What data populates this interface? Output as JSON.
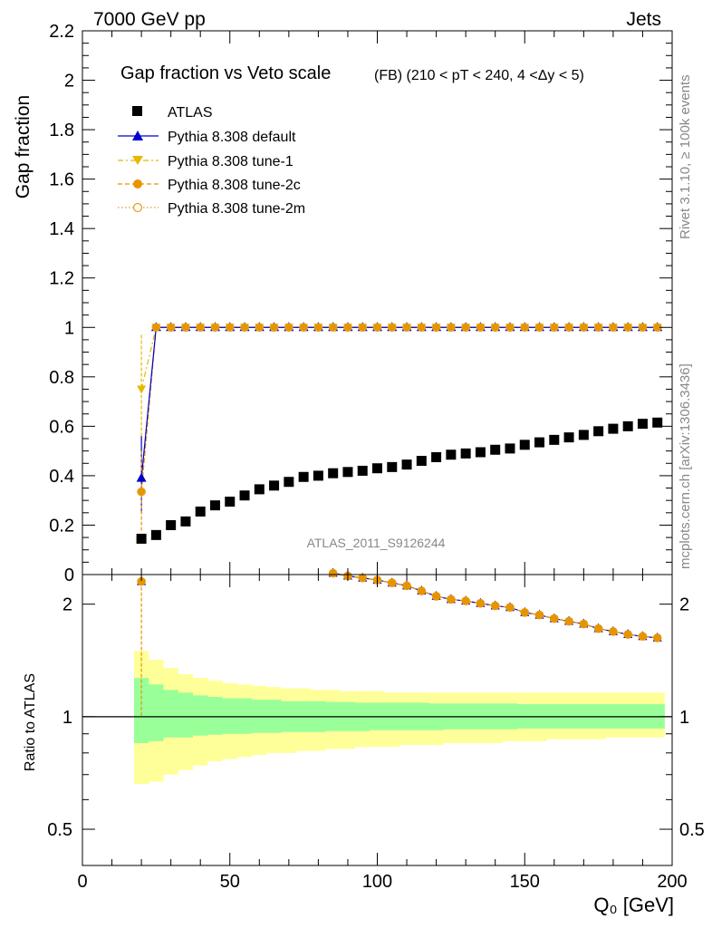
{
  "header": {
    "left": "7000 GeV pp",
    "right": "Jets"
  },
  "side_labels": {
    "rivet": "Rivet 3.1.10, ≥ 100k events",
    "mcplots": "mcplots.cern.ch [arXiv:1306.3436]"
  },
  "colors": {
    "atlas": "#000000",
    "default": "#0000cc",
    "tune1": "#e6b800",
    "tune2c": "#e69500",
    "tune2m": "#e0a020",
    "band_inner": "#99ff99",
    "band_outer": "#ffff99"
  },
  "chart_data": [
    {
      "type": "scatter",
      "panel": "main",
      "title": "Gap fraction vs Veto scale",
      "subtitle": "(FB) (210 < pT < 240, 4 <Δy < 5)",
      "xlabel": "",
      "ylabel": "Gap fraction",
      "xlim": [
        0,
        200
      ],
      "ylim": [
        0,
        2.2
      ],
      "yticks": [
        "0",
        "0.2",
        "0.4",
        "0.6",
        "0.8",
        "1",
        "1.2",
        "1.4",
        "1.6",
        "1.8",
        "2",
        "2.2"
      ],
      "watermark": "ATLAS_2011_S9126244",
      "x": [
        20,
        25,
        30,
        35,
        40,
        45,
        50,
        55,
        60,
        65,
        70,
        75,
        80,
        85,
        90,
        95,
        100,
        105,
        110,
        115,
        120,
        125,
        130,
        135,
        140,
        145,
        150,
        155,
        160,
        165,
        170,
        175,
        180,
        185,
        190,
        195
      ],
      "series": [
        {
          "name": "ATLAS",
          "key": "atlas",
          "marker": "square",
          "values": [
            0.145,
            0.16,
            0.2,
            0.215,
            0.255,
            0.28,
            0.295,
            0.32,
            0.345,
            0.36,
            0.375,
            0.395,
            0.4,
            0.41,
            0.415,
            0.42,
            0.43,
            0.435,
            0.445,
            0.46,
            0.475,
            0.485,
            0.49,
            0.495,
            0.505,
            0.51,
            0.525,
            0.535,
            0.545,
            0.555,
            0.565,
            0.58,
            0.59,
            0.6,
            0.61,
            0.615
          ]
        },
        {
          "name": "Pythia 8.308 default",
          "key": "default",
          "marker": "triangle-up",
          "line": "solid",
          "values": [
            0.39,
            1,
            1,
            1,
            1,
            1,
            1,
            1,
            1,
            1,
            1,
            1,
            1,
            1,
            1,
            1,
            1,
            1,
            1,
            1,
            1,
            1,
            1,
            1,
            1,
            1,
            1,
            1,
            1,
            1,
            1,
            1,
            1,
            1,
            1,
            1
          ]
        },
        {
          "name": "Pythia 8.308 tune-1",
          "key": "tune1",
          "marker": "triangle-down",
          "line": "dashdot",
          "values": [
            0.75,
            1,
            1,
            1,
            1,
            1,
            1,
            1,
            1,
            1,
            1,
            1,
            1,
            1,
            1,
            1,
            1,
            1,
            1,
            1,
            1,
            1,
            1,
            1,
            1,
            1,
            1,
            1,
            1,
            1,
            1,
            1,
            1,
            1,
            1,
            1
          ]
        },
        {
          "name": "Pythia 8.308 tune-2c",
          "key": "tune2c",
          "marker": "circle",
          "line": "dashed",
          "values": [
            0.335,
            1,
            1,
            1,
            1,
            1,
            1,
            1,
            1,
            1,
            1,
            1,
            1,
            1,
            1,
            1,
            1,
            1,
            1,
            1,
            1,
            1,
            1,
            1,
            1,
            1,
            1,
            1,
            1,
            1,
            1,
            1,
            1,
            1,
            1,
            1
          ]
        },
        {
          "name": "Pythia 8.308 tune-2m",
          "key": "tune2m",
          "marker": "circle-open",
          "line": "dotted",
          "values": [
            0.335,
            1,
            1,
            1,
            1,
            1,
            1,
            1,
            1,
            1,
            1,
            1,
            1,
            1,
            1,
            1,
            1,
            1,
            1,
            1,
            1,
            1,
            1,
            1,
            1,
            1,
            1,
            1,
            1,
            1,
            1,
            1,
            1,
            1,
            1,
            1
          ]
        }
      ]
    },
    {
      "type": "scatter",
      "panel": "ratio",
      "ylabel": "Ratio to ATLAS",
      "xlabel": "Q₀ [GeV]",
      "xlim": [
        0,
        200
      ],
      "ylim": [
        0.4,
        2.4
      ],
      "yscale": "log",
      "xticks": [
        "0",
        "50",
        "100",
        "150",
        "200"
      ],
      "yticks": [
        "0.5",
        "1",
        "2"
      ],
      "x": [
        20,
        85,
        90,
        95,
        100,
        105,
        110,
        115,
        120,
        125,
        130,
        135,
        140,
        145,
        150,
        155,
        160,
        165,
        170,
        175,
        180,
        185,
        190,
        195
      ],
      "values": [
        2.3,
        2.42,
        2.38,
        2.35,
        2.32,
        2.28,
        2.24,
        2.17,
        2.1,
        2.06,
        2.04,
        2.01,
        1.98,
        1.96,
        1.9,
        1.87,
        1.83,
        1.8,
        1.77,
        1.72,
        1.69,
        1.66,
        1.64,
        1.625
      ],
      "band_inner_lo": [
        0.85,
        0.86,
        0.88,
        0.88,
        0.89,
        0.895,
        0.9,
        0.9,
        0.905,
        0.905,
        0.91,
        0.91,
        0.91,
        0.915,
        0.915,
        0.915,
        0.92,
        0.92,
        0.92,
        0.92,
        0.92,
        0.925,
        0.925,
        0.925,
        0.925,
        0.925,
        0.93,
        0.93,
        0.93,
        0.93,
        0.93,
        0.93,
        0.93,
        0.93,
        0.93,
        0.93
      ],
      "band_inner_hi": [
        1.27,
        1.22,
        1.18,
        1.16,
        1.14,
        1.13,
        1.12,
        1.12,
        1.11,
        1.11,
        1.1,
        1.1,
        1.1,
        1.095,
        1.095,
        1.09,
        1.09,
        1.09,
        1.09,
        1.09,
        1.085,
        1.085,
        1.085,
        1.085,
        1.085,
        1.085,
        1.08,
        1.08,
        1.08,
        1.08,
        1.08,
        1.08,
        1.08,
        1.08,
        1.08,
        1.08
      ],
      "band_outer_lo": [
        0.66,
        0.67,
        0.7,
        0.72,
        0.74,
        0.76,
        0.77,
        0.78,
        0.79,
        0.8,
        0.8,
        0.81,
        0.81,
        0.82,
        0.82,
        0.83,
        0.83,
        0.83,
        0.84,
        0.84,
        0.84,
        0.85,
        0.85,
        0.85,
        0.85,
        0.86,
        0.86,
        0.86,
        0.87,
        0.87,
        0.87,
        0.87,
        0.88,
        0.88,
        0.88,
        0.88
      ],
      "band_outer_hi": [
        1.5,
        1.42,
        1.35,
        1.3,
        1.27,
        1.25,
        1.23,
        1.22,
        1.21,
        1.2,
        1.19,
        1.19,
        1.18,
        1.18,
        1.17,
        1.17,
        1.17,
        1.16,
        1.16,
        1.16,
        1.16,
        1.16,
        1.16,
        1.16,
        1.16,
        1.16,
        1.16,
        1.16,
        1.16,
        1.16,
        1.16,
        1.16,
        1.16,
        1.16,
        1.16,
        1.16
      ]
    }
  ]
}
